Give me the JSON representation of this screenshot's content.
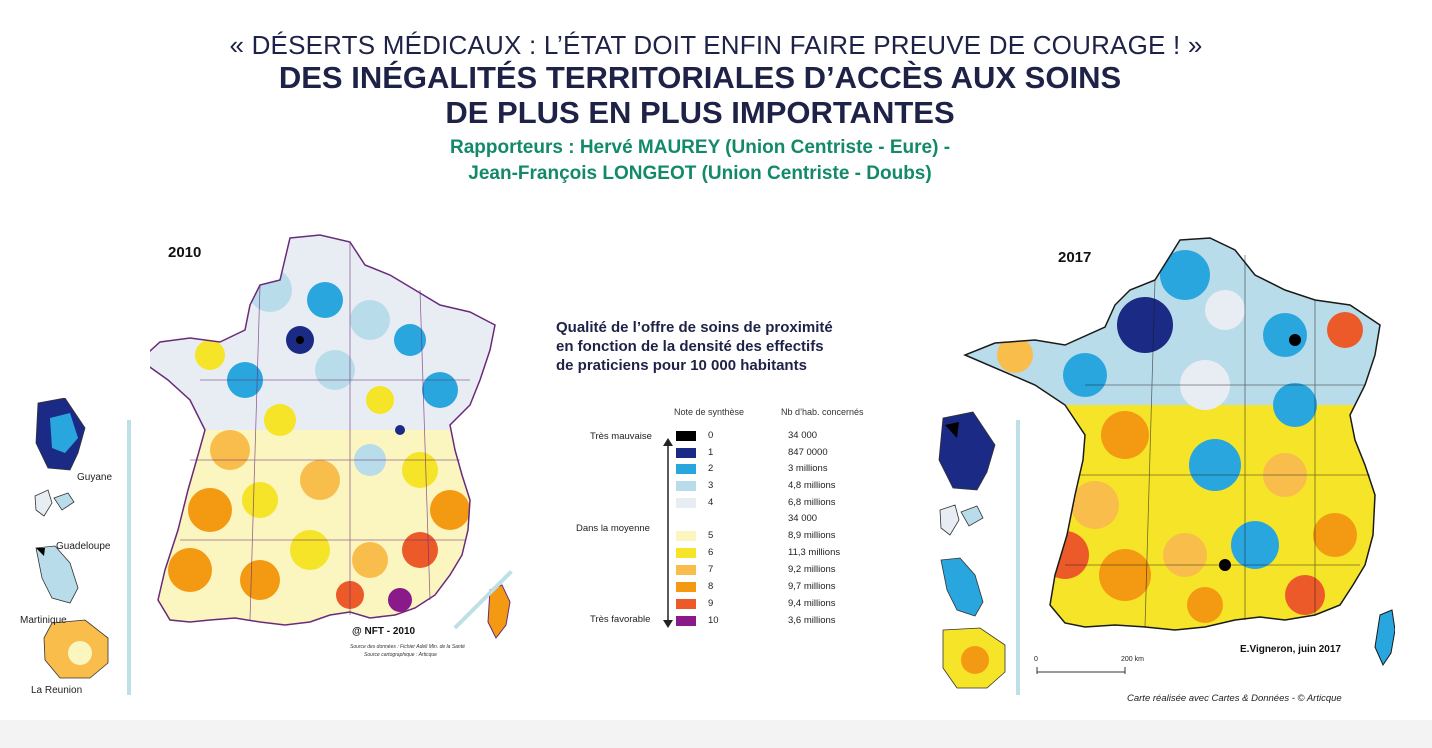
{
  "header": {
    "quote": "« DÉSERTS MÉDICAUX : L’ÉTAT DOIT ENFIN FAIRE PREUVE DE COURAGE ! »",
    "title_line1": "DES INÉGALITÉS TERRITORIALES D’ACCÈS AUX SOINS",
    "title_line2": "DE PLUS EN PLUS IMPORTANTES",
    "rapporteurs_line1": "Rapporteurs : Hervé MAUREY (Union Centriste - Eure) -",
    "rapporteurs_line2": "Jean-François LONGEOT (Union Centriste - Doubs)"
  },
  "map_2010": {
    "year": "2010",
    "overseas_labels": [
      "Guyane",
      "Guadeloupe",
      "Martinique",
      "La Reunion"
    ],
    "credit": "@ NFT - 2010",
    "source_line1": "Source des données : Fichier Adeli Min. de la Santé",
    "source_line2": "Source cartographique : Articque"
  },
  "map_2017": {
    "year": "2017",
    "credit": "E.Vigneron, juin 2017",
    "scale_zero": "0",
    "scale_label": "200  km",
    "source": "Carte réalisée avec Cartes & Données - © Articque"
  },
  "legend": {
    "title_line1": "Qualité de l’offre de soins de proximité",
    "title_line2": "en fonction de la densité des effectifs",
    "title_line3": "de praticiens pour 10 000 habitants",
    "col_note": "Note de synthèse",
    "col_hab": "Nb d’hab. concernés",
    "cat_bad": "Très mauvaise",
    "cat_mid": "Dans la moyenne",
    "cat_good": "Très favorable",
    "extra_value": "34 000",
    "classes": [
      {
        "note": "0",
        "color": "#000000",
        "value": "34 000"
      },
      {
        "note": "1",
        "color": "#1b2a85",
        "value": "847 0000"
      },
      {
        "note": "2",
        "color": "#2aa6df",
        "value": "3 millions"
      },
      {
        "note": "3",
        "color": "#b9dcea",
        "value": "4,8 millions"
      },
      {
        "note": "4",
        "color": "#e8edf4",
        "value": "6,8 millions"
      },
      {
        "note": "5",
        "color": "#fbf5c0",
        "value": "8,9 millions"
      },
      {
        "note": "6",
        "color": "#f5e427",
        "value": "11,3 millions"
      },
      {
        "note": "7",
        "color": "#f9bd4c",
        "value": "9,2 millions"
      },
      {
        "note": "8",
        "color": "#f39a12",
        "value": "9,7 millions"
      },
      {
        "note": "9",
        "color": "#ec5a2a",
        "value": "9,4 millions"
      },
      {
        "note": "10",
        "color": "#8a1a8a",
        "value": "3,6 millions"
      }
    ]
  }
}
